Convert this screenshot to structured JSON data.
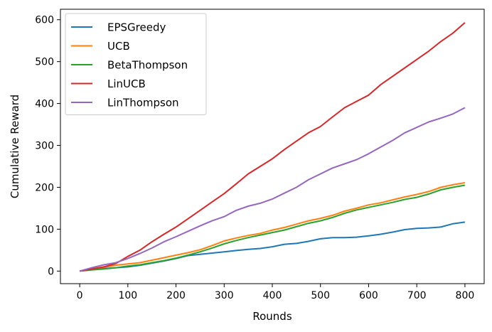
{
  "chart_data": {
    "type": "line",
    "title": "",
    "xlabel": "Rounds",
    "ylabel": "Cumulative Reward",
    "xlim": [
      -40,
      840
    ],
    "ylim": [
      -30,
      625
    ],
    "xticks": [
      0,
      100,
      200,
      300,
      400,
      500,
      600,
      700,
      800
    ],
    "yticks": [
      0,
      100,
      200,
      300,
      400,
      500,
      600
    ],
    "grid": false,
    "legend_position": "top-left",
    "x": [
      0,
      25,
      50,
      75,
      100,
      125,
      150,
      175,
      200,
      225,
      250,
      275,
      300,
      325,
      350,
      375,
      400,
      425,
      450,
      475,
      500,
      525,
      550,
      575,
      600,
      625,
      650,
      675,
      700,
      725,
      750,
      775,
      800
    ],
    "series": [
      {
        "name": "EPSGreedy",
        "color": "#1f77b4",
        "values": [
          0,
          3,
          6,
          8,
          10,
          14,
          19,
          24,
          30,
          37,
          40,
          43,
          46,
          49,
          52,
          54,
          58,
          64,
          66,
          71,
          77,
          80,
          80,
          81,
          84,
          88,
          93,
          99,
          102,
          103,
          105,
          113,
          117
        ]
      },
      {
        "name": "UCB",
        "color": "#ff7f0e",
        "values": [
          0,
          5,
          9,
          14,
          17,
          20,
          26,
          32,
          38,
          44,
          51,
          61,
          72,
          79,
          85,
          90,
          98,
          104,
          112,
          120,
          126,
          133,
          143,
          150,
          158,
          163,
          170,
          177,
          183,
          190,
          200,
          206,
          211
        ]
      },
      {
        "name": "BetaThompson",
        "color": "#2ca02c",
        "values": [
          0,
          3,
          5,
          8,
          12,
          15,
          20,
          25,
          31,
          38,
          46,
          55,
          65,
          73,
          80,
          86,
          92,
          98,
          106,
          114,
          120,
          128,
          138,
          146,
          152,
          158,
          164,
          171,
          176,
          184,
          194,
          200,
          205
        ]
      },
      {
        "name": "LinUCB",
        "color": "#d62728",
        "values": [
          0,
          5,
          10,
          18,
          35,
          50,
          70,
          88,
          105,
          125,
          145,
          165,
          185,
          208,
          232,
          250,
          268,
          290,
          310,
          330,
          345,
          368,
          390,
          405,
          420,
          445,
          465,
          485,
          505,
          525,
          548,
          568,
          593
        ]
      },
      {
        "name": "LinThompson",
        "color": "#9467bd",
        "values": [
          0,
          8,
          15,
          20,
          30,
          42,
          55,
          70,
          82,
          95,
          108,
          120,
          130,
          145,
          155,
          162,
          172,
          186,
          200,
          218,
          232,
          246,
          256,
          266,
          280,
          296,
          312,
          330,
          343,
          356,
          365,
          375,
          390
        ]
      }
    ]
  }
}
